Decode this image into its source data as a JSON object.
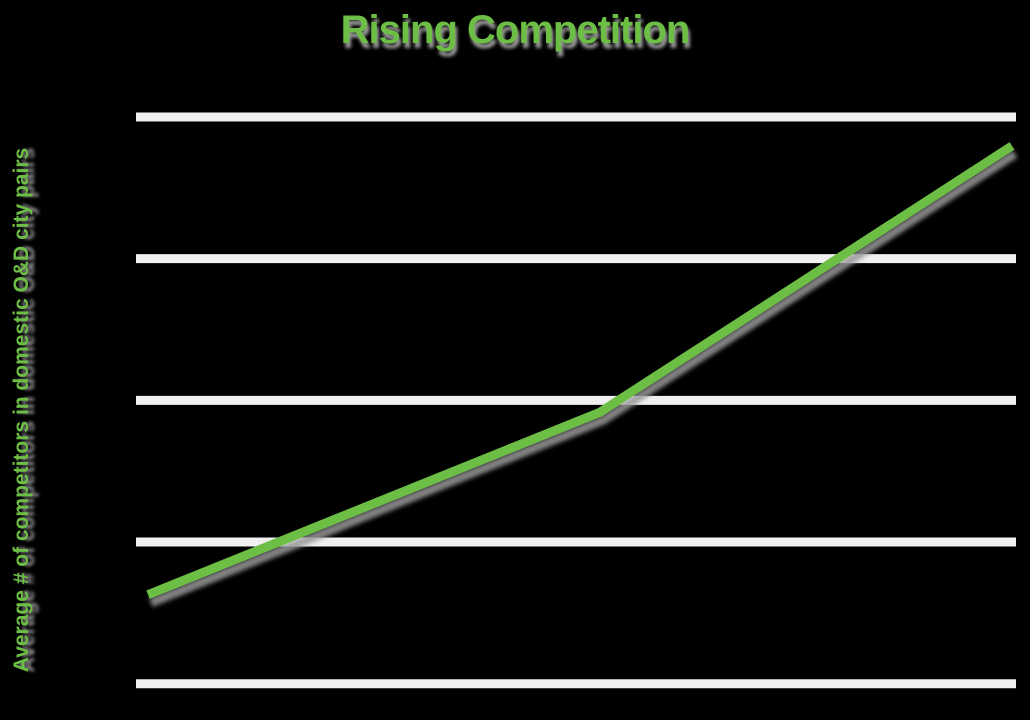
{
  "page": {
    "background_color": "#000000"
  },
  "title": {
    "text": "Rising Competition",
    "color": "#6CBE45"
  },
  "y_axis": {
    "label": "Average # of competitors in domestic O&D city pairs",
    "color": "#6CBE45"
  },
  "colors": {
    "line": "#6CBE45",
    "grid": "#F0F0F0",
    "shadow": "#9A9A9A",
    "background": "#000000"
  },
  "chart_data": {
    "type": "line",
    "title": "Rising Competition",
    "xlabel": "",
    "ylabel": "Average # of competitors in domestic O&D city pairs",
    "x_tick_labels": [],
    "y_tick_labels": [],
    "grid": {
      "horizontal_lines": 5,
      "vertical_lines": 0,
      "left_spine": true,
      "bottom_spine_is_gridline": true
    },
    "legend_position": "none",
    "axis_ranges": {
      "note": "no numeric tick labels visible; values expressed as fractions of plot area"
    },
    "series": [
      {
        "name": "Average # of competitors in domestic O&D city pairs",
        "points_fraction": [
          {
            "x": 0.0,
            "y": 0.157
          },
          {
            "x": 0.523,
            "y": 0.479
          },
          {
            "x": 1.0,
            "y": 0.949
          }
        ]
      }
    ]
  }
}
